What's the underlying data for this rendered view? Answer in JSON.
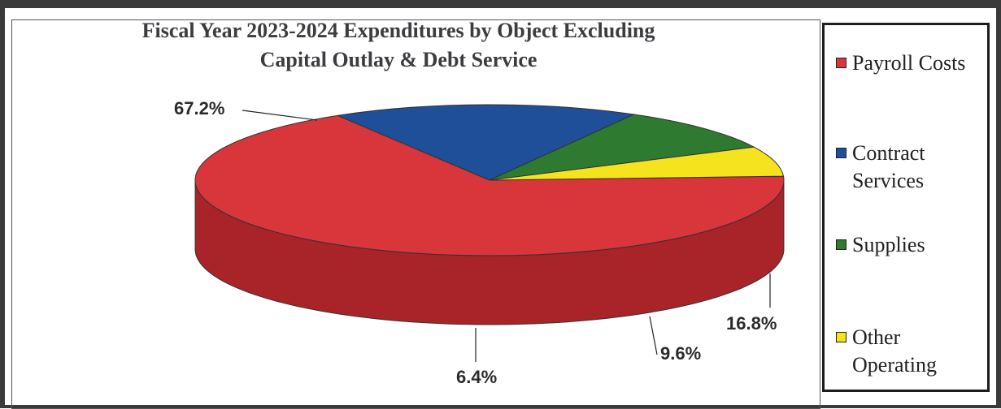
{
  "chart_data": {
    "type": "pie",
    "style": "3d",
    "title": [
      "Fiscal Year 2023-2024 Expenditures by Object Excluding",
      "Capital Outlay & Debt Service"
    ],
    "legend_position": "right",
    "slices": [
      {
        "name": "Payroll Costs",
        "value": 67.2,
        "label": "67.2%",
        "color": "#d8363a",
        "dark": "#a82428",
        "legend_lines": [
          "Payroll Costs"
        ]
      },
      {
        "name": "Contract Services",
        "value": 16.8,
        "label": "16.8%",
        "color": "#1f4f99",
        "dark": "#1a3760",
        "legend_lines": [
          "Contract",
          "Services"
        ]
      },
      {
        "name": "Supplies",
        "value": 9.6,
        "label": "9.6%",
        "color": "#2e7a30",
        "dark": "#2d4a2e",
        "legend_lines": [
          "Supplies"
        ]
      },
      {
        "name": "Other Operating",
        "value": 6.4,
        "label": "6.4%",
        "color": "#f5e31e",
        "dark": "#d9c82c",
        "legend_lines": [
          "Other",
          "Operating"
        ]
      }
    ]
  }
}
